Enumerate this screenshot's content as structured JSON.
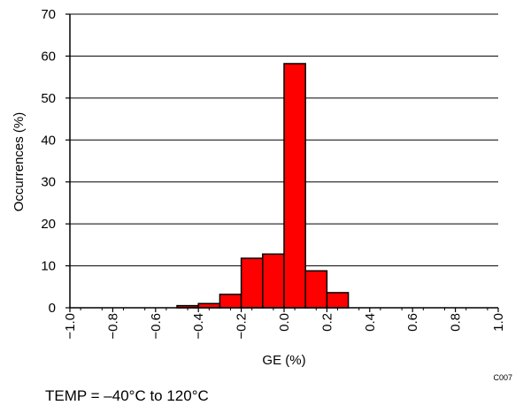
{
  "chart_data": {
    "type": "bar",
    "xlabel": "GE (%)",
    "ylabel": "Occurrences (%)",
    "xlim": [
      -1.0,
      1.0
    ],
    "ylim": [
      0,
      70
    ],
    "x_ticks": [
      -1.0,
      -0.8,
      -0.6,
      -0.4,
      -0.2,
      0.0,
      0.2,
      0.4,
      0.6,
      0.8,
      1.0
    ],
    "x_tick_labels": [
      "−1.0",
      "−0.8",
      "−0.6",
      "−0.4",
      "−0.2",
      "0.0",
      "0.2",
      "0.4",
      "0.6",
      "0.8",
      "1.0"
    ],
    "y_ticks": [
      0,
      10,
      20,
      30,
      40,
      50,
      60,
      70
    ],
    "y_tick_labels": [
      "0",
      "10",
      "20",
      "30",
      "40",
      "50",
      "60",
      "70"
    ],
    "bin_width": 0.1,
    "bin_starts": [
      -1.0,
      -0.9,
      -0.8,
      -0.7,
      -0.6,
      -0.5,
      -0.4,
      -0.3,
      -0.2,
      -0.1,
      0.0,
      0.1,
      0.2,
      0.3,
      0.4,
      0.5,
      0.6,
      0.7,
      0.8,
      0.9
    ],
    "values": [
      0,
      0,
      0,
      0,
      0,
      0.5,
      1,
      3.2,
      11.8,
      12.8,
      58.2,
      8.8,
      3.6,
      0,
      0,
      0,
      0,
      0,
      0,
      0
    ],
    "grid": true,
    "bar_color": "#ff0000",
    "edge_color": "#000000"
  },
  "annotations": {
    "code": "C007",
    "footnote": "TEMP = –40°C to 120°C"
  }
}
